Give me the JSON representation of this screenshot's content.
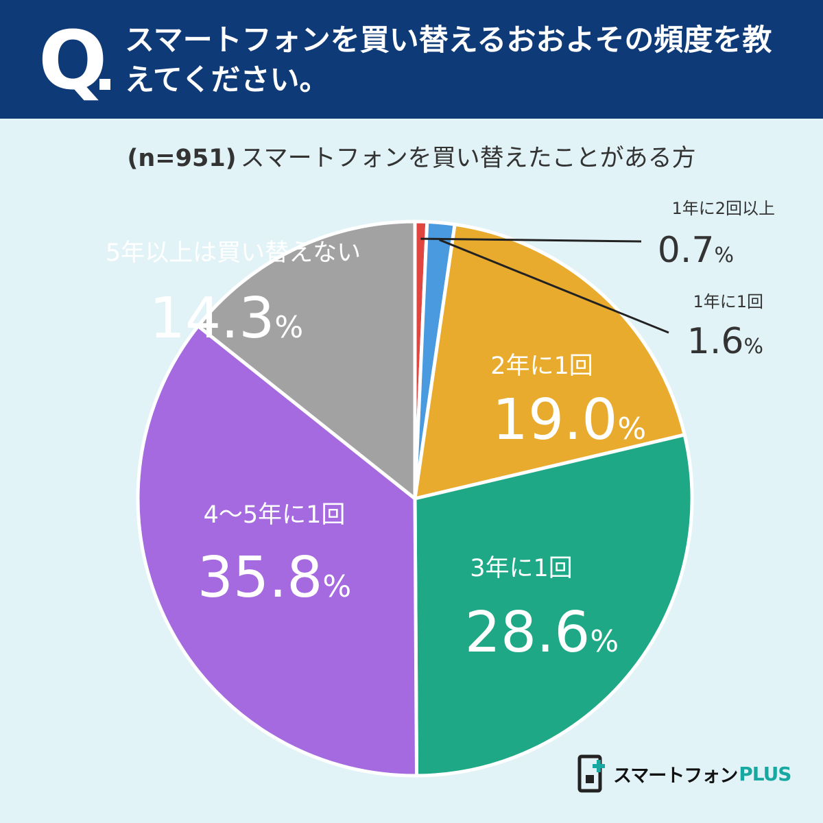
{
  "header": {
    "q_label": "Q",
    "question": "スマートフォンを買い替えるおおよその頻度を教えてください。"
  },
  "subtitle": {
    "n_label": "(n=951)",
    "text": "スマートフォンを買い替えたことがある方"
  },
  "chart_data": {
    "type": "pie",
    "start_angle_deg": 0,
    "direction": "clockwise",
    "slices": [
      {
        "label": "1年に2回以上",
        "value": 0.7,
        "display": "0.7",
        "color": "#e0453f"
      },
      {
        "label": "1年に1回",
        "value": 1.6,
        "display": "1.6",
        "color": "#4a9ae0"
      },
      {
        "label": "2年に1回",
        "value": 19.0,
        "display": "19.0",
        "color": "#e8ab2e"
      },
      {
        "label": "3年に1回",
        "value": 28.6,
        "display": "28.6",
        "color": "#1ea886"
      },
      {
        "label": "4〜5年に1回",
        "value": 35.8,
        "display": "35.8",
        "color": "#a569e0"
      },
      {
        "label": "5年以上は買い替えない",
        "value": 14.3,
        "display": "14.3",
        "color": "#a3a2a3"
      }
    ],
    "unit": "%"
  },
  "logo": {
    "text": "スマートフォン",
    "plus": "PLUS"
  },
  "colors": {
    "header_bg": "#0f3a78",
    "background": "#e1f3f6"
  }
}
